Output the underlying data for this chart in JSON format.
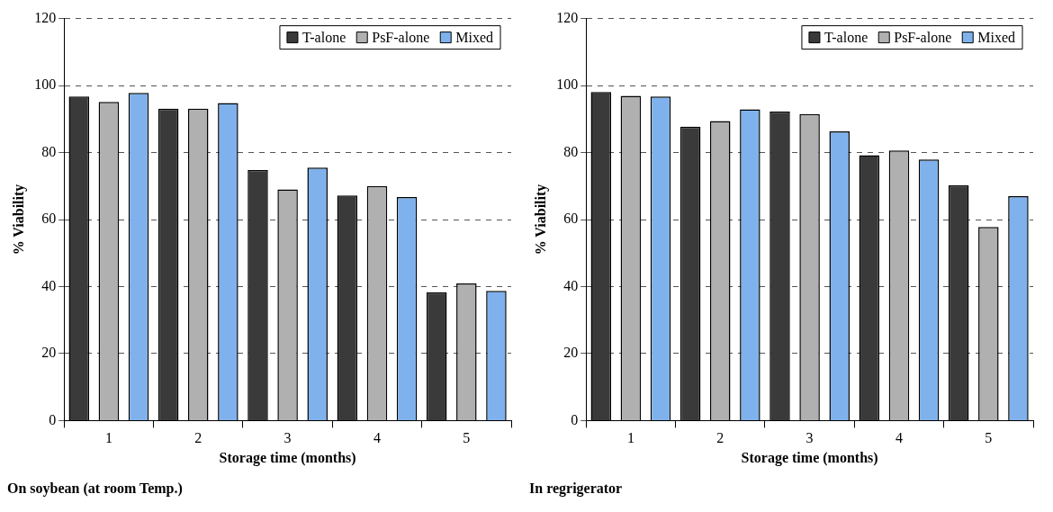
{
  "chart_data": [
    {
      "type": "bar",
      "title": "On soybean (at room Temp.)",
      "xlabel": "Storage time (months)",
      "ylabel": "% Viability",
      "categories": [
        "1",
        "2",
        "3",
        "4",
        "5"
      ],
      "series": [
        {
          "name": "T-alone",
          "color": "#3a3a3a",
          "values": [
            96.7,
            93.1,
            74.8,
            67.2,
            38.3
          ]
        },
        {
          "name": "PsF-alone",
          "color": "#b0b0b0",
          "values": [
            95.1,
            93.1,
            69.0,
            70.0,
            40.9
          ]
        },
        {
          "name": "Mixed",
          "color": "#7fb2ec",
          "values": [
            97.8,
            94.8,
            75.5,
            66.7,
            38.7
          ]
        }
      ],
      "ylim": [
        0,
        120
      ],
      "yticks": [
        0,
        20,
        40,
        60,
        80,
        100,
        120
      ],
      "grid": "y",
      "legend": "top right"
    },
    {
      "type": "bar",
      "title": "In regrigerator",
      "xlabel": "Storage time (months)",
      "ylabel": "% Viability",
      "categories": [
        "1",
        "2",
        "3",
        "4",
        "5"
      ],
      "series": [
        {
          "name": "T-alone",
          "color": "#3a3a3a",
          "values": [
            98.1,
            87.7,
            92.2,
            79.2,
            70.2
          ]
        },
        {
          "name": "PsF-alone",
          "color": "#b0b0b0",
          "values": [
            96.9,
            89.4,
            91.5,
            80.6,
            57.8
          ]
        },
        {
          "name": "Mixed",
          "color": "#7fb2ec",
          "values": [
            96.7,
            92.9,
            86.3,
            77.9,
            67.0
          ]
        }
      ],
      "ylim": [
        0,
        120
      ],
      "yticks": [
        0,
        20,
        40,
        60,
        80,
        100,
        120
      ],
      "grid": "y",
      "legend": "top right"
    }
  ]
}
